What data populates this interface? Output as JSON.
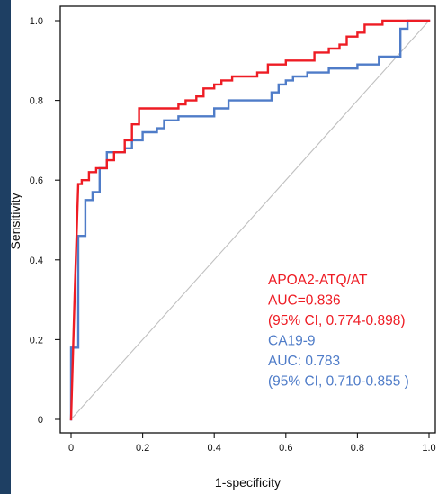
{
  "chart_data": {
    "type": "line",
    "title": "",
    "xlabel": "1-specificity",
    "ylabel": "Sensitivity",
    "xlim": [
      0,
      1
    ],
    "ylim": [
      0,
      1
    ],
    "x_ticks": [
      "0",
      "0.2",
      "0.4",
      "0.6",
      "0.8",
      "1.0"
    ],
    "y_ticks": [
      "0",
      "0.2",
      "0.4",
      "0.6",
      "0.8",
      "1.0"
    ],
    "grid": false,
    "legend_position": "bottom-right",
    "reference_line": {
      "from": [
        0,
        0
      ],
      "to": [
        1,
        1
      ],
      "color": "#c0c0c0"
    },
    "series": [
      {
        "name": "APOA2-ATQ/AT",
        "color": "#ee1c24",
        "legend_lines": [
          "APOA2-ATQ/AT",
          "AUC=0.836",
          "(95% CI, 0.774-0.898)"
        ],
        "x": [
          0,
          0.01,
          0.02,
          0.02,
          0.03,
          0.03,
          0.05,
          0.05,
          0.07,
          0.07,
          0.1,
          0.1,
          0.12,
          0.12,
          0.15,
          0.15,
          0.17,
          0.17,
          0.19,
          0.19,
          0.21,
          0.21,
          0.3,
          0.3,
          0.32,
          0.32,
          0.35,
          0.35,
          0.37,
          0.37,
          0.4,
          0.4,
          0.42,
          0.42,
          0.45,
          0.45,
          0.52,
          0.52,
          0.55,
          0.55,
          0.6,
          0.6,
          0.68,
          0.68,
          0.72,
          0.72,
          0.75,
          0.75,
          0.77,
          0.77,
          0.8,
          0.8,
          0.82,
          0.82,
          0.87,
          0.87,
          0.93,
          0.93,
          1.0
        ],
        "y": [
          0,
          0.31,
          0.59,
          0.59,
          0.59,
          0.6,
          0.6,
          0.62,
          0.62,
          0.63,
          0.63,
          0.65,
          0.65,
          0.67,
          0.67,
          0.7,
          0.7,
          0.74,
          0.74,
          0.78,
          0.78,
          0.78,
          0.78,
          0.79,
          0.79,
          0.8,
          0.8,
          0.81,
          0.81,
          0.83,
          0.83,
          0.84,
          0.84,
          0.85,
          0.85,
          0.86,
          0.86,
          0.87,
          0.87,
          0.89,
          0.89,
          0.9,
          0.9,
          0.92,
          0.92,
          0.93,
          0.93,
          0.94,
          0.94,
          0.96,
          0.96,
          0.97,
          0.97,
          0.99,
          0.99,
          1.0,
          1.0,
          1.0,
          1.0
        ]
      },
      {
        "name": "CA19-9",
        "color": "#4f7cc8",
        "legend_lines": [
          "CA19-9",
          "AUC: 0.783",
          "(95% CI, 0.710-0.855 )"
        ],
        "x": [
          0,
          0,
          0.02,
          0.02,
          0.04,
          0.04,
          0.06,
          0.06,
          0.08,
          0.08,
          0.1,
          0.1,
          0.15,
          0.15,
          0.17,
          0.17,
          0.2,
          0.2,
          0.24,
          0.24,
          0.26,
          0.26,
          0.3,
          0.3,
          0.4,
          0.4,
          0.44,
          0.44,
          0.56,
          0.56,
          0.58,
          0.58,
          0.6,
          0.6,
          0.62,
          0.62,
          0.66,
          0.66,
          0.72,
          0.72,
          0.8,
          0.8,
          0.86,
          0.86,
          0.92,
          0.92,
          0.94,
          0.94,
          1.0
        ],
        "y": [
          0,
          0.18,
          0.18,
          0.46,
          0.46,
          0.55,
          0.55,
          0.57,
          0.57,
          0.63,
          0.63,
          0.67,
          0.67,
          0.68,
          0.68,
          0.7,
          0.7,
          0.72,
          0.72,
          0.73,
          0.73,
          0.75,
          0.75,
          0.76,
          0.76,
          0.78,
          0.78,
          0.8,
          0.8,
          0.82,
          0.82,
          0.84,
          0.84,
          0.85,
          0.85,
          0.86,
          0.86,
          0.87,
          0.87,
          0.88,
          0.88,
          0.89,
          0.89,
          0.91,
          0.91,
          0.98,
          0.98,
          1.0,
          1.0
        ]
      }
    ]
  }
}
